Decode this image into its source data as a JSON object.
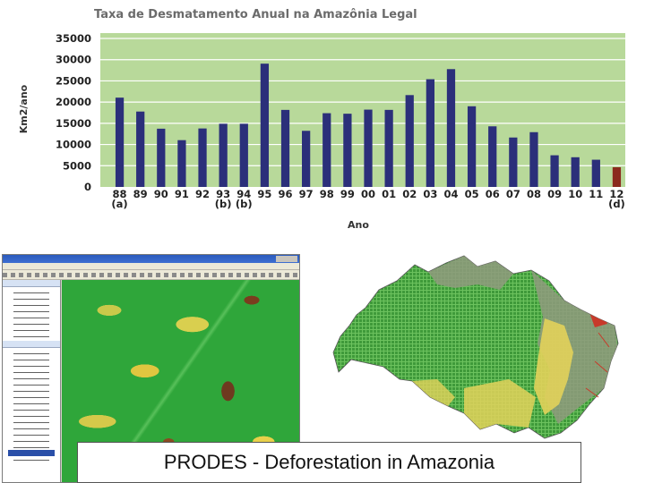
{
  "chart_data": {
    "type": "bar",
    "title": "Taxa de Desmatamento Anual na Amazônia Legal",
    "xlabel": "Ano",
    "ylabel": "Km2/ano",
    "ylim": [
      0,
      35000
    ],
    "yticks": [
      "0",
      "5000",
      "10000",
      "15000",
      "20000",
      "25000",
      "30000",
      "35000"
    ],
    "grid": true,
    "categories": [
      "88",
      "89",
      "90",
      "91",
      "92",
      "93",
      "94",
      "95",
      "96",
      "97",
      "98",
      "99",
      "00",
      "01",
      "02",
      "03",
      "04",
      "05",
      "06",
      "07",
      "08",
      "09",
      "10",
      "11",
      "12"
    ],
    "category_notes": [
      "(a)",
      "",
      "",
      "",
      "",
      "(b)",
      "(b)",
      "",
      "",
      "",
      "",
      "",
      "",
      "",
      "",
      "",
      "",
      "",
      "",
      "",
      "",
      "",
      "",
      "",
      "(d)"
    ],
    "values": [
      21050,
      17770,
      13730,
      11030,
      13786,
      14896,
      14896,
      29059,
      18161,
      13227,
      17383,
      17259,
      18226,
      18165,
      21651,
      25396,
      27772,
      19014,
      14286,
      11651,
      12911,
      7464,
      7000,
      6418,
      4656
    ],
    "bar_colors": [
      "#2b2f7a",
      "#2b2f7a",
      "#2b2f7a",
      "#2b2f7a",
      "#2b2f7a",
      "#2b2f7a",
      "#2b2f7a",
      "#2b2f7a",
      "#2b2f7a",
      "#2b2f7a",
      "#2b2f7a",
      "#2b2f7a",
      "#2b2f7a",
      "#2b2f7a",
      "#2b2f7a",
      "#2b2f7a",
      "#2b2f7a",
      "#2b2f7a",
      "#2b2f7a",
      "#2b2f7a",
      "#2b2f7a",
      "#2b2f7a",
      "#2b2f7a",
      "#2b2f7a",
      "#8b2a1e"
    ],
    "plot_background": "#b8d99a",
    "gridline_color": "#ffffff"
  },
  "caption": "PRODES - Deforestation in Amazonia",
  "map_colors": {
    "forest": "#3f9a3a",
    "deforested": "#e2d25a",
    "non_forest": "#8f9a7e",
    "highlight": "#c83a2a"
  }
}
